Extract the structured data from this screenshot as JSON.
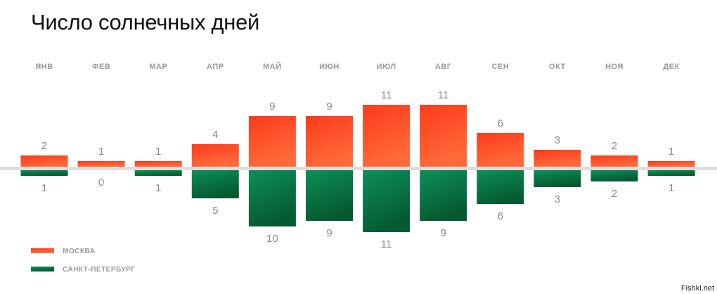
{
  "title": "Число солнечных дней",
  "watermark": "Fishki.net",
  "chart_data": {
    "type": "bar",
    "layout": "diverging",
    "categories": [
      "ЯНВ",
      "ФЕВ",
      "МАР",
      "АПР",
      "МАЙ",
      "ИЮН",
      "ИЮЛ",
      "АВГ",
      "СЕН",
      "ОКТ",
      "НОЯ",
      "ДЕК"
    ],
    "series": [
      {
        "name": "МОСКВА",
        "direction": "up",
        "color": "#f53a1e",
        "values": [
          2,
          1,
          1,
          4,
          9,
          9,
          11,
          11,
          6,
          3,
          2,
          1
        ]
      },
      {
        "name": "САНКТ-ПЕТЕРБУРГ",
        "direction": "down",
        "color": "#0a7a4a",
        "values": [
          1,
          0,
          1,
          5,
          10,
          9,
          11,
          9,
          6,
          3,
          2,
          1
        ]
      }
    ],
    "legend_position": "bottom-left",
    "axis_color": "#dddddd"
  }
}
